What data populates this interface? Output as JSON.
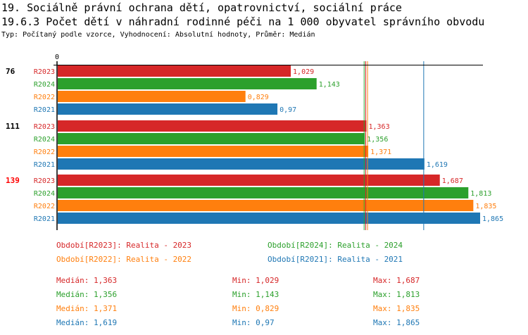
{
  "title": "19. Sociálně právní ochrana dětí, opatrovnictví, sociální práce",
  "subtitle": "19.6.3 Počet dětí v náhradní rodinné péči na 1 000 obyvatel správního obvodu",
  "info": "Typ: Počítaný podle vzorce, Vyhodnocení: Absolutní hodnoty, Průměr: Medián",
  "colors": {
    "R2023": "#d62728",
    "R2024": "#2ca02c",
    "R2022": "#ff7f0e",
    "R2021": "#1f77b4",
    "highlight": "#ff0000"
  },
  "chart_data": {
    "type": "bar",
    "orientation": "horizontal",
    "xlim": [
      0,
      1.865
    ],
    "x_tick_labels": [
      "0"
    ],
    "categories": [
      "76",
      "111",
      "139"
    ],
    "highlighted_category": "139",
    "series": [
      {
        "name": "R2023",
        "values": [
          1.029,
          1.363,
          1.687
        ],
        "labels": [
          "1,029",
          "1,363",
          "1,687"
        ]
      },
      {
        "name": "R2024",
        "values": [
          1.143,
          1.356,
          1.813
        ],
        "labels": [
          "1,143",
          "1,356",
          "1,813"
        ]
      },
      {
        "name": "R2022",
        "values": [
          0.829,
          1.371,
          1.835
        ],
        "labels": [
          "0,829",
          "1,371",
          "1,835"
        ]
      },
      {
        "name": "R2021",
        "values": [
          0.97,
          1.619,
          1.865
        ],
        "labels": [
          "0,97",
          "1,619",
          "1,865"
        ]
      }
    ],
    "median_lines": [
      1.363,
      1.356,
      1.371,
      1.619
    ]
  },
  "legend": [
    {
      "series": "R2023",
      "text": "Období[R2023]: Realita - 2023"
    },
    {
      "series": "R2024",
      "text": "Období[R2024]: Realita - 2024"
    },
    {
      "series": "R2022",
      "text": "Období[R2022]: Realita - 2022"
    },
    {
      "series": "R2021",
      "text": "Období[R2021]: Realita - 2021"
    }
  ],
  "stats": [
    {
      "series": "R2023",
      "median": "Medián: 1,363",
      "min": "Min: 1,029",
      "max": "Max: 1,687"
    },
    {
      "series": "R2024",
      "median": "Medián: 1,356",
      "min": "Min: 1,143",
      "max": "Max: 1,813"
    },
    {
      "series": "R2022",
      "median": "Medián: 1,371",
      "min": "Min: 0,829",
      "max": "Max: 1,835"
    },
    {
      "series": "R2021",
      "median": "Medián: 1,619",
      "min": "Min: 0,97",
      "max": "Max: 1,865"
    }
  ]
}
